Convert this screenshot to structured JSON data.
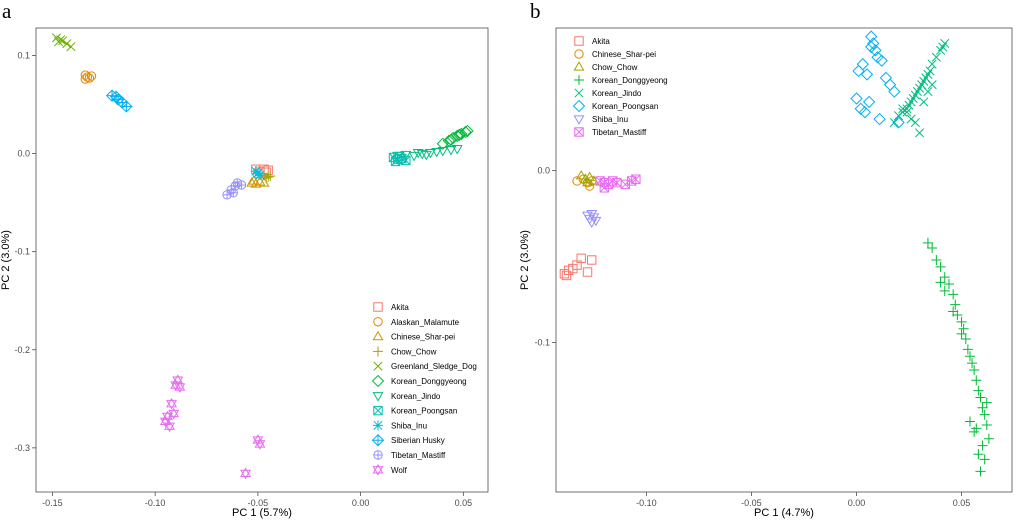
{
  "panels": [
    {
      "letter": "a",
      "xlabel": "PC 1 (5.7%)",
      "ylabel": "PC 2 (3.0%)",
      "xlim": [
        -0.158,
        0.062
      ],
      "ylim": [
        -0.345,
        0.128
      ],
      "xticks": [
        -0.15,
        -0.1,
        -0.05,
        0.0,
        0.05
      ],
      "xtick_labels": [
        "-0.15",
        "-0.10",
        "-0.05",
        "0.00",
        "0.05"
      ],
      "yticks": [
        0.1,
        0.0,
        -0.1,
        -0.2,
        -0.3
      ],
      "ytick_labels": [
        "0.1",
        "0.0",
        "-0.1",
        "-0.2",
        "-0.3"
      ],
      "legend_position": "bottom-right"
    },
    {
      "letter": "b",
      "xlabel": "PC 1 (4.7%)",
      "ylabel": "PC 2 (3.0%)",
      "xlim": [
        -0.143,
        0.074
      ],
      "ylim": [
        -0.187,
        0.083
      ],
      "xticks": [
        -0.1,
        -0.05,
        0.0,
        0.05
      ],
      "xtick_labels": [
        "-0.10",
        "-0.05",
        "0.00",
        "0.05"
      ],
      "yticks": [
        0.0,
        -0.1
      ],
      "ytick_labels": [
        "0.0",
        "-0.1"
      ],
      "legend_position": "top-left"
    }
  ],
  "chart_data": [
    {
      "type": "scatter",
      "title": "",
      "xlabel": "PC 1 (5.7%)",
      "ylabel": "PC 2 (3.0%)",
      "xlim": [
        -0.158,
        0.062
      ],
      "ylim": [
        -0.345,
        0.128
      ],
      "grid": false,
      "legend": "bottom-right",
      "series": [
        {
          "name": "Akita",
          "color": "#F8766D",
          "shape": "square",
          "x": [
            -0.051,
            -0.049,
            -0.047,
            -0.045,
            -0.05,
            -0.046
          ],
          "y": [
            -0.016,
            -0.018,
            -0.016,
            -0.017,
            -0.02,
            -0.019
          ]
        },
        {
          "name": "Alaskan_Malamute",
          "color": "#E58700",
          "shape": "circle",
          "x": [
            -0.134,
            -0.133,
            -0.132,
            -0.134,
            -0.131
          ],
          "y": [
            0.08,
            0.078,
            0.077,
            0.076,
            0.079
          ]
        },
        {
          "name": "Chinese_Shar-pei",
          "color": "#C99800",
          "shape": "triangle",
          "x": [
            -0.053,
            -0.051,
            -0.049,
            -0.047,
            -0.052
          ],
          "y": [
            -0.03,
            -0.031,
            -0.029,
            -0.03,
            -0.028
          ]
        },
        {
          "name": "Chow_Chow",
          "color": "#A3A500",
          "shape": "plus",
          "x": [
            -0.047,
            -0.045,
            -0.044,
            -0.046
          ],
          "y": [
            -0.022,
            -0.024,
            -0.023,
            -0.025
          ]
        },
        {
          "name": "Greenland_Sledge_Dog",
          "color": "#6BB100",
          "shape": "cross",
          "x": [
            -0.148,
            -0.146,
            -0.145,
            -0.143,
            -0.141,
            -0.147
          ],
          "y": [
            0.118,
            0.116,
            0.115,
            0.112,
            0.109,
            0.114
          ]
        },
        {
          "name": "Korean_Donggyeong",
          "color": "#00BA38",
          "shape": "diamond",
          "x": [
            0.04,
            0.043,
            0.045,
            0.047,
            0.049,
            0.051,
            0.052,
            0.048,
            0.044
          ],
          "y": [
            0.01,
            0.013,
            0.016,
            0.018,
            0.02,
            0.022,
            0.023,
            0.019,
            0.014
          ]
        },
        {
          "name": "Korean_Jindo",
          "color": "#00BF7D",
          "shape": "triangle-down",
          "x": [
            0.018,
            0.022,
            0.026,
            0.03,
            0.034,
            0.037,
            0.04,
            0.044,
            0.047,
            0.032,
            0.028
          ],
          "y": [
            -0.002,
            -0.001,
            -0.002,
            0.0,
            0.001,
            0.002,
            0.003,
            0.004,
            0.005,
            -0.001,
            0.001
          ]
        },
        {
          "name": "Korean_Poongsan",
          "color": "#00C0AF",
          "shape": "square-cross",
          "x": [
            0.016,
            0.018,
            0.02,
            0.022,
            0.017,
            0.019
          ],
          "y": [
            -0.004,
            -0.006,
            -0.005,
            -0.007,
            -0.008,
            -0.003
          ]
        },
        {
          "name": "Shiba_Inu",
          "color": "#00BCD8",
          "shape": "asterisk",
          "x": [
            -0.051,
            -0.05,
            -0.049
          ],
          "y": [
            -0.018,
            -0.02,
            -0.022
          ]
        },
        {
          "name": "Siberian Husky",
          "color": "#00B0F6",
          "shape": "diamond-plus",
          "x": [
            -0.121,
            -0.119,
            -0.118,
            -0.116,
            -0.114
          ],
          "y": [
            0.059,
            0.058,
            0.055,
            0.052,
            0.048
          ]
        },
        {
          "name": "Tibetan_Mastiff",
          "color": "#9590FF",
          "shape": "circle-plus",
          "x": [
            -0.065,
            -0.063,
            -0.061,
            -0.06,
            -0.058,
            -0.062
          ],
          "y": [
            -0.042,
            -0.037,
            -0.033,
            -0.03,
            -0.032,
            -0.04
          ]
        },
        {
          "name": "Wolf",
          "color": "#E76BF3",
          "shape": "star-david",
          "x": [
            -0.094,
            -0.093,
            -0.092,
            -0.09,
            -0.089,
            -0.088,
            -0.095,
            -0.091,
            -0.05,
            -0.049,
            -0.056
          ],
          "y": [
            -0.268,
            -0.278,
            -0.255,
            -0.236,
            -0.231,
            -0.238,
            -0.273,
            -0.265,
            -0.292,
            -0.296,
            -0.326
          ]
        }
      ]
    },
    {
      "type": "scatter",
      "title": "",
      "xlabel": "PC 1 (4.7%)",
      "ylabel": "PC 2 (3.0%)",
      "xlim": [
        -0.143,
        0.074
      ],
      "ylim": [
        -0.187,
        0.083
      ],
      "grid": false,
      "legend": "top-left",
      "series": [
        {
          "name": "Akita",
          "color": "#F8766D",
          "shape": "square",
          "x": [
            -0.139,
            -0.137,
            -0.135,
            -0.133,
            -0.131,
            -0.128,
            -0.126,
            -0.138
          ],
          "y": [
            -0.06,
            -0.058,
            -0.057,
            -0.055,
            -0.051,
            -0.059,
            -0.052,
            -0.061
          ]
        },
        {
          "name": "Chinese_Shar-pei",
          "color": "#E58700",
          "shape": "circle",
          "x": [
            -0.133,
            -0.13,
            -0.128,
            -0.126,
            -0.127
          ],
          "y": [
            -0.006,
            -0.005,
            -0.007,
            -0.006,
            -0.009
          ]
        },
        {
          "name": "Chow_Chow",
          "color": "#A3A500",
          "shape": "triangle",
          "x": [
            -0.131,
            -0.129,
            -0.127,
            -0.125,
            -0.128
          ],
          "y": [
            -0.003,
            -0.005,
            -0.004,
            -0.006,
            -0.007
          ]
        },
        {
          "name": "Korean_Donggyeong",
          "color": "#00BA38",
          "shape": "plus",
          "x": [
            0.034,
            0.036,
            0.038,
            0.04,
            0.042,
            0.044,
            0.046,
            0.047,
            0.048,
            0.05,
            0.051,
            0.052,
            0.053,
            0.054,
            0.055,
            0.056,
            0.057,
            0.058,
            0.059,
            0.06,
            0.061,
            0.062,
            0.063,
            0.06,
            0.058,
            0.056,
            0.054,
            0.05,
            0.046,
            0.042,
            0.04,
            0.062,
            0.061,
            0.059,
            0.057
          ],
          "y": [
            -0.042,
            -0.045,
            -0.052,
            -0.056,
            -0.062,
            -0.066,
            -0.072,
            -0.078,
            -0.084,
            -0.088,
            -0.092,
            -0.098,
            -0.104,
            -0.108,
            -0.112,
            -0.116,
            -0.122,
            -0.128,
            -0.132,
            -0.138,
            -0.142,
            -0.148,
            -0.156,
            -0.16,
            -0.165,
            -0.152,
            -0.146,
            -0.095,
            -0.082,
            -0.07,
            -0.065,
            -0.135,
            -0.168,
            -0.175,
            -0.15
          ]
        },
        {
          "name": "Korean_Jindo",
          "color": "#00BF7D",
          "shape": "cross",
          "x": [
            0.018,
            0.02,
            0.022,
            0.024,
            0.025,
            0.026,
            0.027,
            0.028,
            0.029,
            0.03,
            0.031,
            0.032,
            0.033,
            0.034,
            0.035,
            0.036,
            0.038,
            0.04,
            0.041,
            0.042,
            0.03,
            0.028,
            0.026,
            0.024,
            0.032,
            0.034,
            0.036,
            0.022
          ],
          "y": [
            0.028,
            0.032,
            0.034,
            0.036,
            0.038,
            0.04,
            0.042,
            0.044,
            0.046,
            0.048,
            0.05,
            0.052,
            0.054,
            0.056,
            0.058,
            0.062,
            0.066,
            0.07,
            0.072,
            0.074,
            0.022,
            0.028,
            0.03,
            0.034,
            0.04,
            0.046,
            0.05,
            0.036
          ]
        },
        {
          "name": "Korean_Poongsan",
          "color": "#00B0F6",
          "shape": "diamond",
          "x": [
            0.0,
            0.002,
            0.004,
            0.006,
            0.007,
            0.008,
            0.009,
            0.01,
            0.012,
            0.014,
            0.016,
            0.018,
            0.02,
            0.001,
            0.003,
            0.005,
            0.007,
            0.011
          ],
          "y": [
            0.042,
            0.036,
            0.034,
            0.04,
            0.078,
            0.074,
            0.07,
            0.066,
            0.064,
            0.054,
            0.05,
            0.046,
            0.028,
            0.058,
            0.062,
            0.056,
            0.072,
            0.03
          ]
        },
        {
          "name": "Shiba_Inu",
          "color": "#9590FF",
          "shape": "triangle-down",
          "x": [
            -0.128,
            -0.127,
            -0.126,
            -0.125,
            -0.124,
            -0.126
          ],
          "y": [
            -0.026,
            -0.028,
            -0.025,
            -0.027,
            -0.029,
            -0.03
          ]
        },
        {
          "name": "Tibetan_Mastiff",
          "color": "#E76BF3",
          "shape": "square-cross",
          "x": [
            -0.122,
            -0.12,
            -0.118,
            -0.116,
            -0.114,
            -0.11,
            -0.107,
            -0.105,
            -0.12
          ],
          "y": [
            -0.006,
            -0.007,
            -0.008,
            -0.006,
            -0.007,
            -0.008,
            -0.006,
            -0.005,
            -0.01
          ]
        }
      ]
    }
  ]
}
